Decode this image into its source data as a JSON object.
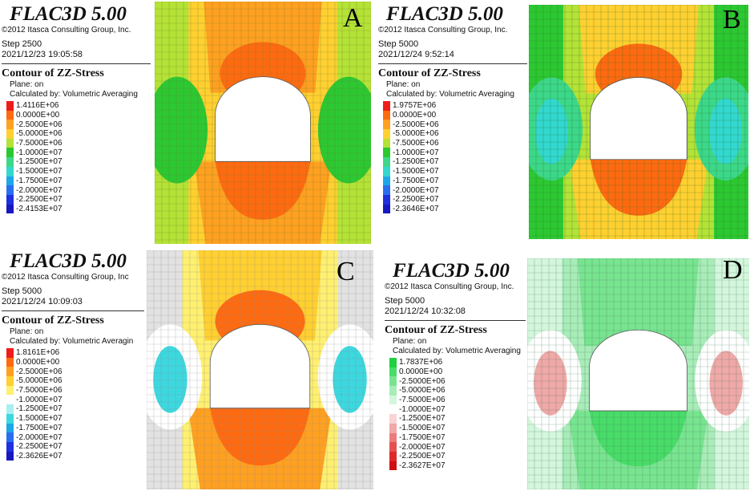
{
  "panels": [
    {
      "letter": "A",
      "software": "FLAC3D 5.00",
      "copyright": "©2012 Itasca Consulting Group, Inc.",
      "step": "Step 2500",
      "timestamp": "2021/12/23 19:05:58",
      "contour_title": "Contour of ZZ-Stress",
      "plane": "Plane: on",
      "calculated_by": "Calculated by: Volumetric Averaging",
      "scale": [
        {
          "label": "1.4116E+06",
          "color": "#f01c1c"
        },
        {
          "label": "0.0000E+00",
          "color": "#ff6a10"
        },
        {
          "label": "-2.5000E+06",
          "color": "#ffa020"
        },
        {
          "label": "-5.0000E+06",
          "color": "#ffd030"
        },
        {
          "label": "-7.5000E+06",
          "color": "#b4e236"
        },
        {
          "label": "-1.0000E+07",
          "color": "#2cc832"
        },
        {
          "label": "-1.2500E+07",
          "color": "#3cd88a"
        },
        {
          "label": "-1.5000E+07",
          "color": "#32d8d0"
        },
        {
          "label": "-1.7500E+07",
          "color": "#1ca8e8"
        },
        {
          "label": "-2.0000E+07",
          "color": "#2a6ef0"
        },
        {
          "label": "-2.2500E+07",
          "color": "#2030e0"
        },
        {
          "label": "-2.4153E+07",
          "color": "#1818c0"
        }
      ],
      "field": {
        "bg": "#b4e236",
        "crown_outer": "#ffd030",
        "crown_mid": "#ffa020",
        "crown_inner": "#ff6a10",
        "floor_outer": "#ffa020",
        "floor_inner": "#ff6a10",
        "side_outer": "#2cc832",
        "side_inner": "#2cc832",
        "mesh": "#6a7a30"
      }
    },
    {
      "letter": "B",
      "software": "FLAC3D 5.00",
      "copyright": "©2012 Itasca Consulting Group, Inc.",
      "step": "Step 5000",
      "timestamp": "2021/12/24 9:52:14",
      "contour_title": "Contour of ZZ-Stress",
      "plane": "Plane: on",
      "calculated_by": "Calculated by: Volumetric Averaging",
      "scale": [
        {
          "label": "1.9757E+06",
          "color": "#f01c1c"
        },
        {
          "label": "0.0000E+00",
          "color": "#ff6a10"
        },
        {
          "label": "-2.5000E+06",
          "color": "#ffa020"
        },
        {
          "label": "-5.0000E+06",
          "color": "#ffd030"
        },
        {
          "label": "-7.5000E+06",
          "color": "#b4e236"
        },
        {
          "label": "-1.0000E+07",
          "color": "#2cc832"
        },
        {
          "label": "-1.2500E+07",
          "color": "#3cd88a"
        },
        {
          "label": "-1.5000E+07",
          "color": "#32d8d0"
        },
        {
          "label": "-1.7500E+07",
          "color": "#1ca8e8"
        },
        {
          "label": "-2.0000E+07",
          "color": "#2a6ef0"
        },
        {
          "label": "-2.2500E+07",
          "color": "#2030e0"
        },
        {
          "label": "-2.3646E+07",
          "color": "#1818c0"
        }
      ],
      "field": {
        "bg": "#2cc832",
        "crown_outer": "#b4e236",
        "crown_mid": "#ffd030",
        "crown_inner": "#ff6a10",
        "floor_outer": "#ffd030",
        "floor_inner": "#ff6a10",
        "side_outer": "#3cd88a",
        "side_inner": "#32d8d0",
        "mesh": "#2a6a2a"
      }
    },
    {
      "letter": "C",
      "software": "FLAC3D 5.00",
      "copyright": "©2012 Itasca Consulting Group, Inc",
      "step": "Step 5000",
      "timestamp": "2021/12/24 10:09:03",
      "contour_title": "Contour of ZZ-Stress",
      "plane": "Plane: on",
      "calculated_by": "Calculated by: Volumetric Averagin",
      "scale": [
        {
          "label": "1.8161E+06",
          "color": "#f01c1c"
        },
        {
          "label": "0.0000E+00",
          "color": "#ff6a10"
        },
        {
          "label": "-2.5000E+06",
          "color": "#ffa020"
        },
        {
          "label": "-5.0000E+06",
          "color": "#ffd030"
        },
        {
          "label": "-7.5000E+06",
          "color": "#fff070"
        },
        {
          "label": "-1.0000E+07",
          "color": "#ffffff"
        },
        {
          "label": "-1.2500E+07",
          "color": "#a8f0f0"
        },
        {
          "label": "-1.5000E+07",
          "color": "#3cd8e0"
        },
        {
          "label": "-1.7500E+07",
          "color": "#1ca8e8"
        },
        {
          "label": "-2.0000E+07",
          "color": "#2a6ef0"
        },
        {
          "label": "-2.2500E+07",
          "color": "#2030e0"
        },
        {
          "label": "-2.3626E+07",
          "color": "#1818c0"
        }
      ],
      "field": {
        "bg": "#e2e2e2",
        "crown_outer": "#fff070",
        "crown_mid": "#ffd030",
        "crown_inner": "#ff6a10",
        "floor_outer": "#ffa020",
        "floor_inner": "#ff6a10",
        "side_outer": "#ffffff",
        "side_inner": "#3cd8e0",
        "mesh": "#8a8a8a"
      }
    },
    {
      "letter": "D",
      "software": "FLAC3D 5.00",
      "copyright": "©2012 Itasca Consulting Group, Inc.",
      "step": "Step 5000",
      "timestamp": "2021/12/24 10:32:08",
      "contour_title": "Contour of ZZ-Stress",
      "plane": "Plane: on",
      "calculated_by": "Calculated by: Volumetric Averaging",
      "scale": [
        {
          "label": "1.7837E+06",
          "color": "#20d040"
        },
        {
          "label": "0.0000E+00",
          "color": "#48dc68"
        },
        {
          "label": "-2.5000E+06",
          "color": "#78e490"
        },
        {
          "label": "-5.0000E+06",
          "color": "#a8ecb8"
        },
        {
          "label": "-7.5000E+06",
          "color": "#d4f6dc"
        },
        {
          "label": "-1.0000E+07",
          "color": "#ffffff"
        },
        {
          "label": "-1.2500E+07",
          "color": "#f8d4d4"
        },
        {
          "label": "-1.5000E+07",
          "color": "#f0a8a8"
        },
        {
          "label": "-1.7500E+07",
          "color": "#ea7c7c"
        },
        {
          "label": "-2.0000E+07",
          "color": "#e45050"
        },
        {
          "label": "-2.2500E+07",
          "color": "#de2828"
        },
        {
          "label": "-2.3627E+07",
          "color": "#d01010"
        }
      ],
      "field": {
        "bg": "#d4f6dc",
        "crown_outer": "#a8ecb8",
        "crown_mid": "#78e490",
        "crown_inner": "#78e490",
        "floor_outer": "#78e490",
        "floor_inner": "#48dc68",
        "side_outer": "#ffffff",
        "side_inner": "#f0a8a8",
        "mesh": "#4a7a5a"
      }
    }
  ]
}
